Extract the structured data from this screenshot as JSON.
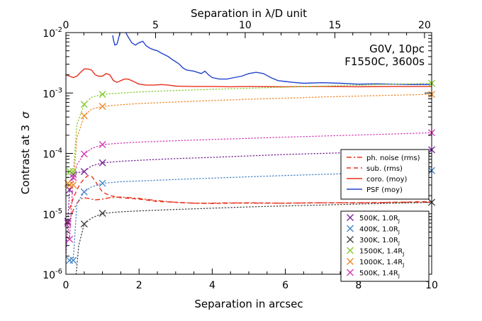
{
  "chart_data": {
    "type": "line",
    "title": "",
    "xlabel": "Separation in arcsec",
    "xlabel_top": "Separation in λ/D unit",
    "ylabel_prefix": "Contrast at 3",
    "ylabel_sigma": "σ",
    "xlim": [
      0,
      10
    ],
    "xlim_top": [
      0,
      20.4
    ],
    "ylim_log10": [
      -6,
      -2
    ],
    "y_scale": "log",
    "x_ticks": [
      0,
      2,
      4,
      6,
      8,
      10
    ],
    "x_tick_labels": [
      "0",
      "2",
      "4",
      "6",
      "8",
      "10"
    ],
    "x_ticks_top": [
      0,
      5,
      10,
      15,
      20
    ],
    "x_tick_labels_top": [
      "0",
      "5",
      "10",
      "15",
      "20"
    ],
    "y_ticks_log10": [
      -6,
      -5,
      -4,
      -3,
      -2
    ],
    "y_tick_labels": [
      {
        "base": "10",
        "exp": "-6"
      },
      {
        "base": "10",
        "exp": "-5"
      },
      {
        "base": "10",
        "exp": "-4"
      },
      {
        "base": "10",
        "exp": "-3"
      },
      {
        "base": "10",
        "exp": "-2"
      }
    ],
    "annotation_lines": [
      "G0V, 10pc",
      "F1550C, 3600s"
    ],
    "curves": [
      {
        "name": "PSF (moy)",
        "color": "#2244cc",
        "dash": "solid",
        "x": [
          1.28,
          1.3,
          1.34,
          1.4,
          1.45,
          1.5,
          1.55,
          1.6,
          1.7,
          1.8,
          1.9,
          2.0,
          2.1,
          2.2,
          2.3,
          2.4,
          2.5,
          2.6,
          2.7,
          2.8,
          2.9,
          3.0,
          3.1,
          3.2,
          3.3,
          3.5,
          3.7,
          3.8,
          3.9,
          4.0,
          4.2,
          4.4,
          4.6,
          4.8,
          5.0,
          5.2,
          5.4,
          5.6,
          5.8,
          6.0,
          6.2,
          6.5,
          7.0,
          7.5,
          8.0,
          8.5,
          9.0,
          9.5,
          10.0
        ],
        "y": [
          0.009,
          0.0075,
          0.0062,
          0.0065,
          0.0085,
          0.011,
          0.0125,
          0.011,
          0.0085,
          0.0068,
          0.0062,
          0.0068,
          0.0072,
          0.006,
          0.0055,
          0.0052,
          0.005,
          0.0046,
          0.0043,
          0.004,
          0.0036,
          0.0033,
          0.003,
          0.0026,
          0.0024,
          0.0023,
          0.0021,
          0.0023,
          0.002,
          0.0018,
          0.0017,
          0.0017,
          0.0018,
          0.0019,
          0.0021,
          0.0022,
          0.0021,
          0.0018,
          0.0016,
          0.00155,
          0.0015,
          0.00145,
          0.00148,
          0.00145,
          0.0014,
          0.00142,
          0.0014,
          0.00138,
          0.00138
        ]
      },
      {
        "name": "coro. (moy)",
        "color": "#e8301c",
        "dash": "solid",
        "x": [
          0.0,
          0.1,
          0.2,
          0.3,
          0.4,
          0.5,
          0.6,
          0.7,
          0.8,
          0.9,
          1.0,
          1.1,
          1.2,
          1.3,
          1.4,
          1.5,
          1.6,
          1.7,
          1.8,
          1.9,
          2.0,
          2.2,
          2.4,
          2.6,
          2.8,
          3.0,
          3.5,
          4.0,
          4.5,
          5.0,
          6.0,
          7.0,
          8.0,
          9.0,
          10.0
        ],
        "y": [
          0.002,
          0.0019,
          0.0018,
          0.0019,
          0.0022,
          0.0025,
          0.0025,
          0.0024,
          0.002,
          0.0019,
          0.0019,
          0.0021,
          0.002,
          0.0016,
          0.0015,
          0.0016,
          0.0017,
          0.0017,
          0.0016,
          0.0015,
          0.0014,
          0.00135,
          0.00135,
          0.00138,
          0.00135,
          0.0013,
          0.00128,
          0.00128,
          0.00127,
          0.00128,
          0.00127,
          0.00128,
          0.00127,
          0.00128,
          0.00128
        ]
      },
      {
        "name": "ph. noise (rms)",
        "color": "#e8301c",
        "dash": "dashdot",
        "x": [
          0.05,
          0.1,
          0.15,
          0.2,
          0.3,
          0.4,
          0.5,
          0.6,
          0.8,
          1.0,
          1.2,
          1.5,
          2.0,
          2.5,
          3.0,
          3.5,
          4.0,
          4.5,
          5.0,
          6.0,
          7.0,
          8.0,
          9.0,
          10.0
        ],
        "y": [
          7e-06,
          8e-06,
          9.5e-06,
          1.15e-05,
          1.5e-05,
          1.75e-05,
          1.85e-05,
          1.8e-05,
          1.7e-05,
          1.75e-05,
          1.85e-05,
          1.9e-05,
          1.8e-05,
          1.65e-05,
          1.55e-05,
          1.5e-05,
          1.5e-05,
          1.52e-05,
          1.5e-05,
          1.5e-05,
          1.52e-05,
          1.52e-05,
          1.55e-05,
          1.55e-05
        ]
      },
      {
        "name": "sub. (rms)",
        "color": "#e8301c",
        "dash": "dashed",
        "x": [
          0.1,
          0.2,
          0.3,
          0.4,
          0.5,
          0.6,
          0.7,
          0.8,
          0.9,
          1.0,
          1.2,
          1.5,
          2.0,
          2.5,
          3.0,
          3.5,
          4.0,
          4.5,
          5.0,
          6.0,
          7.0,
          8.0,
          9.0,
          10.0
        ],
        "y": [
          1.2e-05,
          1.8e-05,
          2.5e-05,
          3.2e-05,
          3.8e-05,
          4.3e-05,
          4.2e-05,
          3.5e-05,
          2.8e-05,
          2.3e-05,
          2e-05,
          1.85e-05,
          1.75e-05,
          1.6e-05,
          1.55e-05,
          1.5e-05,
          1.48e-05,
          1.5e-05,
          1.52e-05,
          1.5e-05,
          1.52e-05,
          1.53e-05,
          1.55e-05,
          1.6e-05
        ]
      }
    ],
    "series": [
      {
        "name": "500K, 1.0R",
        "color": "#7a2a9a",
        "mark_x": [
          0.05,
          0.1,
          0.2,
          0.5,
          1.0,
          10.0
        ],
        "mark_y": [
          7.5e-06,
          2.5e-05,
          4.5e-05,
          5e-05,
          7e-05,
          0.000115
        ],
        "path_x": [
          0.0,
          0.05,
          0.1,
          0.2,
          0.3,
          0.5,
          0.7,
          1.0,
          1.5,
          2,
          3,
          4,
          5,
          6,
          7,
          8,
          9,
          10
        ],
        "path_y": [
          2e-06,
          7.5e-06,
          2.5e-05,
          4.5e-05,
          4.8e-05,
          5e-05,
          6.2e-05,
          7e-05,
          7.4e-05,
          7.7e-05,
          8.2e-05,
          8.6e-05,
          9.1e-05,
          9.6e-05,
          0.0001,
          0.000104,
          0.00011,
          0.000115
        ]
      },
      {
        "name": "400K, 1.0R",
        "color": "#4a86c8",
        "mark_x": [
          0.1,
          0.2,
          0.5,
          1.0,
          10.0
        ],
        "mark_y": [
          1.7e-06,
          1.7e-06,
          2.3e-05,
          3.2e-05,
          5.2e-05
        ],
        "path_x": [
          0.1,
          0.2,
          0.3,
          0.5,
          0.7,
          1.0,
          1.5,
          2,
          3,
          4,
          5,
          6,
          7,
          8,
          9,
          10
        ],
        "path_y": [
          1.7e-06,
          1.7e-06,
          1.5e-05,
          2.3e-05,
          2.8e-05,
          3.2e-05,
          3.4e-05,
          3.5e-05,
          3.7e-05,
          3.9e-05,
          4.1e-05,
          4.3e-05,
          4.5e-05,
          4.7e-05,
          4.95e-05,
          5.2e-05
        ]
      },
      {
        "name": "300K, 1.0R",
        "color": "#444444",
        "mark_x": [
          0.5,
          1.0,
          10.0
        ],
        "mark_y": [
          6.8e-06,
          1.02e-05,
          1.55e-05
        ],
        "path_x": [
          0.28,
          0.35,
          0.5,
          0.7,
          1.0,
          1.5,
          2,
          3,
          4,
          5,
          6,
          7,
          8,
          9,
          10
        ],
        "path_y": [
          1e-06,
          3e-06,
          6.8e-06,
          8.5e-06,
          1.02e-05,
          1.08e-05,
          1.12e-05,
          1.18e-05,
          1.24e-05,
          1.3e-05,
          1.35e-05,
          1.4e-05,
          1.45e-05,
          1.5e-05,
          1.55e-05
        ]
      },
      {
        "name": "1500K, 1.4R",
        "color": "#88cc33",
        "mark_x": [
          0.1,
          0.2,
          0.5,
          1.0,
          10.0
        ],
        "mark_y": [
          5e-05,
          5e-05,
          0.00065,
          0.00095,
          0.00145
        ],
        "path_x": [
          0.05,
          0.1,
          0.2,
          0.3,
          0.5,
          0.7,
          1.0,
          1.5,
          2,
          3,
          4,
          5,
          6,
          7,
          8,
          9,
          10
        ],
        "path_y": [
          4e-05,
          5e-05,
          5e-05,
          0.0003,
          0.00065,
          0.00085,
          0.00095,
          0.001,
          0.00104,
          0.0011,
          0.00115,
          0.0012,
          0.00125,
          0.0013,
          0.00135,
          0.0014,
          0.00145
        ]
      },
      {
        "name": "1000K, 1.4R",
        "color": "#f08a2a",
        "mark_x": [
          0.05,
          0.1,
          0.2,
          0.5,
          1.0,
          10.0
        ],
        "mark_y": [
          3.2e-05,
          3e-05,
          3e-05,
          0.00042,
          0.0006,
          0.00095
        ],
        "path_x": [
          0.05,
          0.1,
          0.2,
          0.3,
          0.5,
          0.7,
          1.0,
          1.5,
          2,
          3,
          4,
          5,
          6,
          7,
          8,
          9,
          10
        ],
        "path_y": [
          3.2e-05,
          3e-05,
          3e-05,
          0.00018,
          0.00042,
          0.00054,
          0.0006,
          0.00064,
          0.00067,
          0.00071,
          0.00075,
          0.00079,
          0.00082,
          0.00086,
          0.00089,
          0.00092,
          0.00095
        ]
      },
      {
        "name": "500K, 1.4R",
        "color": "#d43cb4",
        "mark_x": [
          0.05,
          0.1,
          0.2,
          0.5,
          1.0,
          10.0
        ],
        "mark_y": [
          7e-06,
          3.8e-06,
          4e-05,
          9.8e-05,
          0.00014,
          0.00022
        ],
        "path_x": [
          0.05,
          0.1,
          0.2,
          0.3,
          0.5,
          0.7,
          1.0,
          1.5,
          2,
          3,
          4,
          5,
          6,
          7,
          8,
          9,
          10
        ],
        "path_y": [
          7e-06,
          3.8e-06,
          4e-05,
          6.5e-05,
          9.8e-05,
          0.00012,
          0.00014,
          0.000148,
          0.000154,
          0.000162,
          0.00017,
          0.000178,
          0.000186,
          0.000194,
          0.000202,
          0.00021,
          0.00022
        ]
      }
    ],
    "legend_curves": [
      {
        "label": "ph. noise (rms)",
        "color": "#e8301c",
        "dash": "dashdot"
      },
      {
        "label": "sub. (rms)",
        "color": "#e8301c",
        "dash": "dashed"
      },
      {
        "label": "coro. (moy)",
        "color": "#e8301c",
        "dash": "solid"
      },
      {
        "label": "PSF (moy)",
        "color": "#2244cc",
        "dash": "solid"
      }
    ],
    "legend_series": [
      {
        "label": "500K, 1.0R",
        "sub": "J",
        "color": "#7a2a9a"
      },
      {
        "label": "400K, 1.0R",
        "sub": "J",
        "color": "#4a86c8"
      },
      {
        "label": "300K, 1.0R",
        "sub": "J",
        "color": "#444444"
      },
      {
        "label": "1500K, 1.4R",
        "sub": "J",
        "color": "#88cc33"
      },
      {
        "label": "1000K, 1.4R",
        "sub": "J",
        "color": "#f08a2a"
      },
      {
        "label": "500K, 1.4R",
        "sub": "J",
        "color": "#d43cb4"
      }
    ],
    "grid": false
  }
}
